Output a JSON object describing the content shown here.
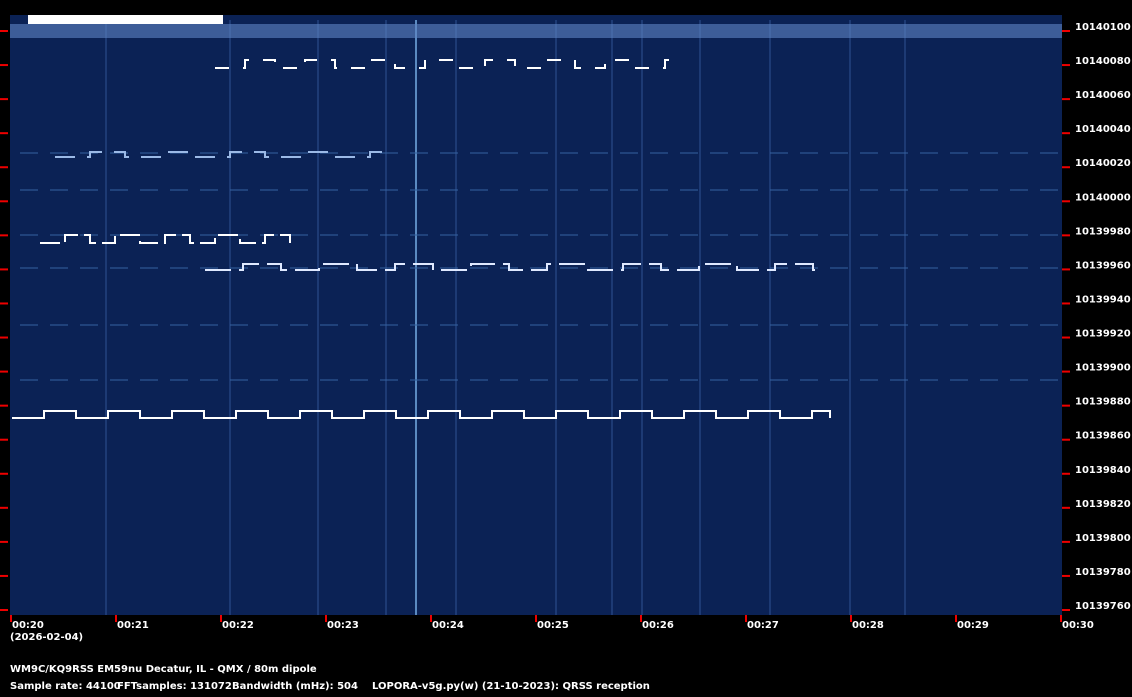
{
  "freq_labels": [
    "10140100",
    "10140080",
    "10140060",
    "10140040",
    "10140020",
    "10140000",
    "10139980",
    "10139960",
    "10139940",
    "10139920",
    "10139900",
    "10139880",
    "10139860",
    "10139840",
    "10139820",
    "10139800",
    "10139780",
    "10139760"
  ],
  "time_labels": [
    "00:20",
    "00:21",
    "00:22",
    "00:23",
    "00:24",
    "00:25",
    "00:26",
    "00:27",
    "00:28",
    "00:29",
    "00:30"
  ],
  "date": "(2026-02-04)",
  "station": "WM9C/KQ9RSS EM59nu Decatur, IL - QMX / 80m dipole",
  "footer": {
    "sample_rate": "Sample rate: 44100",
    "fft_samples": "FFTsamples: 131072",
    "bandwidth": "Bandwidth (mHz): 504",
    "software": "LOPORA-v5g.py(w) (21-10-2023): QRSS reception"
  }
}
